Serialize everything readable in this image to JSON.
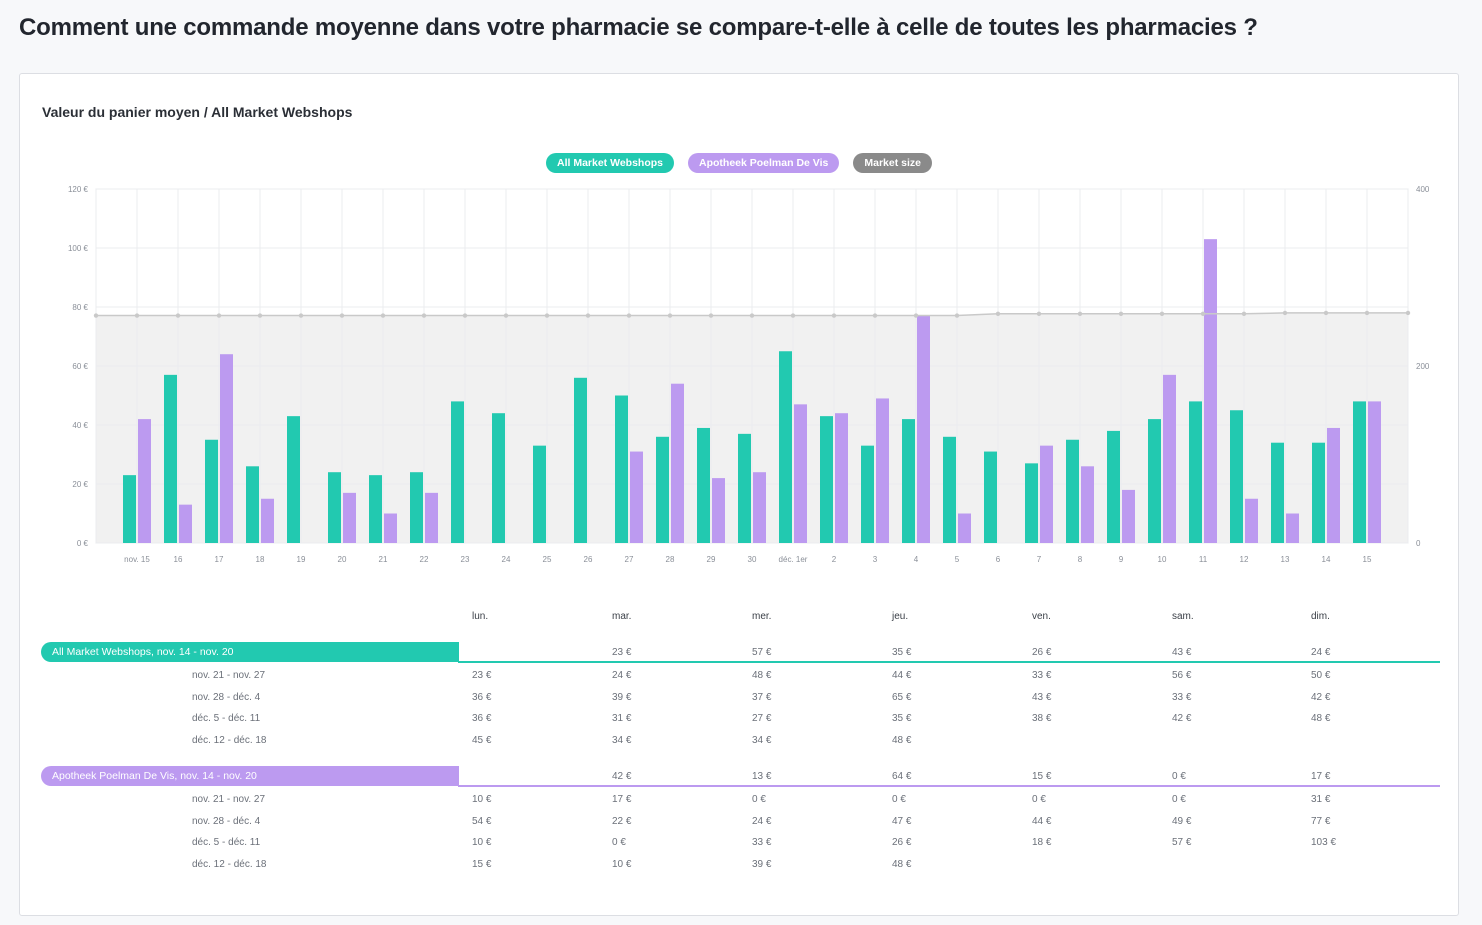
{
  "page_title": "Comment une commande moyenne dans votre pharmacie se compare-t-elle à celle de toutes les pharmacies ?",
  "card_title": "Valeur du panier moyen / All Market Webshops",
  "colors": {
    "teal": "#22c9b0",
    "purple": "#bc9af0",
    "gray": "#8a8a8a",
    "line": "#cfcfcf"
  },
  "legend": [
    {
      "label": "All Market Webshops",
      "color": "#22c9b0"
    },
    {
      "label": "Apotheek Poelman De Vis",
      "color": "#bc9af0"
    },
    {
      "label": "Market size",
      "color": "#8a8a8a"
    }
  ],
  "chart_data": {
    "type": "bar",
    "categories": [
      "nov. 15",
      "16",
      "17",
      "18",
      "19",
      "20",
      "21",
      "22",
      "23",
      "24",
      "25",
      "26",
      "27",
      "28",
      "29",
      "30",
      "déc. 1er",
      "2",
      "3",
      "4",
      "5",
      "6",
      "7",
      "8",
      "9",
      "10",
      "11",
      "12",
      "13",
      "14",
      "15"
    ],
    "y_ticks": [
      "0 €",
      "20 €",
      "40 €",
      "60 €",
      "80 €",
      "100 €",
      "120 €"
    ],
    "ylim": [
      0,
      120
    ],
    "y2_ticks": [
      "0",
      "200",
      "400"
    ],
    "y2lim": [
      0,
      400
    ],
    "series": [
      {
        "name": "All Market Webshops",
        "values": [
          23,
          57,
          35,
          26,
          43,
          24,
          23,
          24,
          48,
          44,
          33,
          56,
          50,
          36,
          39,
          37,
          65,
          43,
          33,
          42,
          36,
          31,
          27,
          35,
          38,
          42,
          48,
          45,
          34,
          34,
          48
        ]
      },
      {
        "name": "Apotheek Poelman De Vis",
        "values": [
          42,
          13,
          64,
          15,
          0,
          17,
          10,
          17,
          0,
          0,
          0,
          0,
          31,
          54,
          22,
          24,
          47,
          44,
          49,
          77,
          10,
          0,
          33,
          26,
          18,
          57,
          103,
          15,
          10,
          39,
          48
        ]
      },
      {
        "name": "Market size",
        "values": [
          257,
          257,
          257,
          257,
          257,
          257,
          257,
          257,
          257,
          257,
          257,
          257,
          257,
          257,
          257,
          257,
          257,
          257,
          257,
          257,
          257,
          259,
          259,
          259,
          259,
          259,
          259,
          259,
          260,
          260,
          260
        ]
      }
    ]
  },
  "table": {
    "days": [
      "lun.",
      "mar.",
      "mer.",
      "jeu.",
      "ven.",
      "sam.",
      "dim."
    ],
    "groups": [
      {
        "label": "All Market Webshops, nov. 14 - nov. 20",
        "first_row": [
          "",
          "23 €",
          "57 €",
          "35 €",
          "26 €",
          "43 €",
          "24 €"
        ],
        "rows": [
          {
            "label": "nov. 21 - nov. 27",
            "cells": [
              "23 €",
              "24 €",
              "48 €",
              "44 €",
              "33 €",
              "56 €",
              "50 €"
            ]
          },
          {
            "label": "nov. 28 - déc. 4",
            "cells": [
              "36 €",
              "39 €",
              "37 €",
              "65 €",
              "43 €",
              "33 €",
              "42 €"
            ]
          },
          {
            "label": "déc. 5 - déc. 11",
            "cells": [
              "36 €",
              "31 €",
              "27 €",
              "35 €",
              "38 €",
              "42 €",
              "48 €"
            ]
          },
          {
            "label": "déc. 12 - déc. 18",
            "cells": [
              "45 €",
              "34 €",
              "34 €",
              "48 €",
              "",
              "",
              ""
            ]
          }
        ]
      },
      {
        "label": "Apotheek Poelman De Vis, nov. 14 - nov. 20",
        "first_row": [
          "",
          "42 €",
          "13 €",
          "64 €",
          "15 €",
          "0 €",
          "17 €"
        ],
        "rows": [
          {
            "label": "nov. 21 - nov. 27",
            "cells": [
              "10 €",
              "17 €",
              "0 €",
              "0 €",
              "0 €",
              "0 €",
              "31 €"
            ]
          },
          {
            "label": "nov. 28 - déc. 4",
            "cells": [
              "54 €",
              "22 €",
              "24 €",
              "47 €",
              "44 €",
              "49 €",
              "77 €"
            ]
          },
          {
            "label": "déc. 5 - déc. 11",
            "cells": [
              "10 €",
              "0 €",
              "33 €",
              "26 €",
              "18 €",
              "57 €",
              "103 €"
            ]
          },
          {
            "label": "déc. 12 - déc. 18",
            "cells": [
              "15 €",
              "10 €",
              "39 €",
              "48 €",
              "",
              "",
              ""
            ]
          }
        ]
      }
    ]
  }
}
